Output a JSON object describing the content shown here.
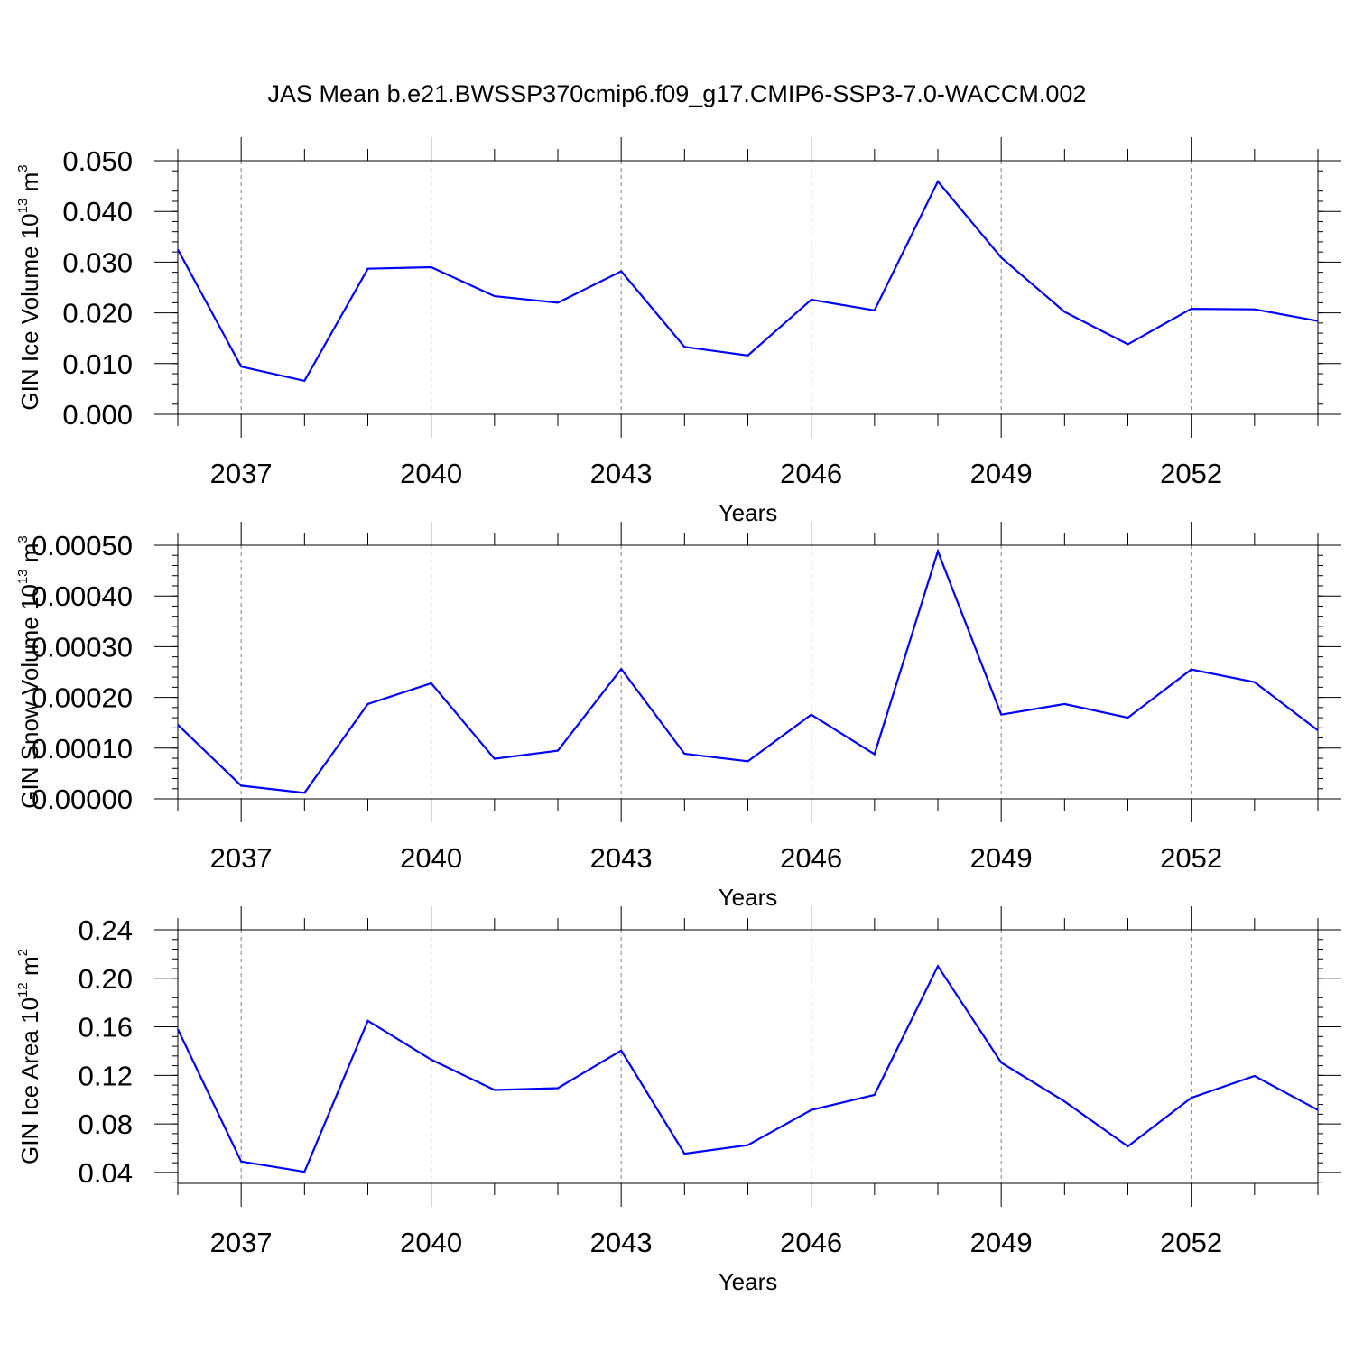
{
  "title": "JAS Mean b.e21.BWSSP370cmip6.f09_g17.CMIP6-SSP3-7.0-WACCM.002",
  "chart_data": [
    {
      "type": "line",
      "title": "JAS Mean b.e21.BWSSP370cmip6.f09_g17.CMIP6-SSP3-7.0-WACCM.002",
      "xlabel": "Years",
      "ylabel_main": "GIN Ice Volume 10",
      "ylabel_exp": "13",
      "ylabel_unit": " m",
      "ylabel_unit_exp": "3",
      "xlim": [
        2036,
        2054
      ],
      "ylim": [
        0.0,
        0.05
      ],
      "xticks": [
        2037,
        2040,
        2043,
        2046,
        2049,
        2052
      ],
      "xtick_labels": [
        "2037",
        "2040",
        "2043",
        "2046",
        "2049",
        "2052"
      ],
      "yticks": [
        0.0,
        0.01,
        0.02,
        0.03,
        0.04,
        0.05
      ],
      "ytick_labels": [
        "0.000",
        "0.010",
        "0.020",
        "0.030",
        "0.040",
        "0.050"
      ],
      "grid": "vertical dashed at major x ticks",
      "series": [
        {
          "color": "#0000ff",
          "x": [
            2036,
            2037,
            2038,
            2039,
            2040,
            2041,
            2042,
            2043,
            2044,
            2045,
            2046,
            2047,
            2048,
            2049,
            2050,
            2051,
            2052,
            2053,
            2054
          ],
          "y": [
            0.0325,
            0.0094,
            0.0066,
            0.0287,
            0.029,
            0.0233,
            0.022,
            0.0282,
            0.0133,
            0.0116,
            0.0226,
            0.0205,
            0.0459,
            0.0309,
            0.0202,
            0.0138,
            0.0208,
            0.0207,
            0.0184
          ]
        }
      ]
    },
    {
      "type": "line",
      "xlabel": "Years",
      "ylabel_main": "GIN Snow Volume 10",
      "ylabel_exp": "13",
      "ylabel_unit": " m",
      "ylabel_unit_exp": "3",
      "xlim": [
        2036,
        2054
      ],
      "ylim": [
        0.0,
        0.0005
      ],
      "xticks": [
        2037,
        2040,
        2043,
        2046,
        2049,
        2052
      ],
      "xtick_labels": [
        "2037",
        "2040",
        "2043",
        "2046",
        "2049",
        "2052"
      ],
      "yticks": [
        0.0,
        0.0001,
        0.0002,
        0.0003,
        0.0004,
        0.0005
      ],
      "ytick_labels": [
        "0.00000",
        "0.00010",
        "0.00020",
        "0.00030",
        "0.00040",
        "0.00050"
      ],
      "grid": "vertical dashed at major x ticks",
      "series": [
        {
          "color": "#0000ff",
          "x": [
            2036,
            2037,
            2038,
            2039,
            2040,
            2041,
            2042,
            2043,
            2044,
            2045,
            2046,
            2047,
            2048,
            2049,
            2050,
            2051,
            2052,
            2053,
            2054
          ],
          "y": [
            0.000146,
            2.6e-05,
            1.2e-05,
            0.000187,
            0.000228,
            7.9e-05,
            9.5e-05,
            0.000256,
            8.9e-05,
            7.4e-05,
            0.000166,
            8.8e-05,
            0.000488,
            0.000166,
            0.000187,
            0.00016,
            0.000255,
            0.00023,
            0.000135
          ]
        }
      ]
    },
    {
      "type": "line",
      "xlabel": "Years",
      "ylabel_main": "GIN Ice Area 10",
      "ylabel_exp": "12",
      "ylabel_unit": " m",
      "ylabel_unit_exp": "2",
      "xlim": [
        2036,
        2054
      ],
      "ylim": [
        0.031,
        0.24
      ],
      "xticks": [
        2037,
        2040,
        2043,
        2046,
        2049,
        2052
      ],
      "xtick_labels": [
        "2037",
        "2040",
        "2043",
        "2046",
        "2049",
        "2052"
      ],
      "yticks": [
        0.04,
        0.08,
        0.12,
        0.16,
        0.2,
        0.24
      ],
      "ytick_labels": [
        "0.04",
        "0.08",
        "0.12",
        "0.16",
        "0.20",
        "0.24"
      ],
      "grid": "vertical dashed at major x ticks",
      "series": [
        {
          "color": "#0000ff",
          "x": [
            2036,
            2037,
            2038,
            2039,
            2040,
            2041,
            2042,
            2043,
            2044,
            2045,
            2046,
            2047,
            2048,
            2049,
            2050,
            2051,
            2052,
            2053,
            2054
          ],
          "y": [
            0.158,
            0.049,
            0.0405,
            0.165,
            0.133,
            0.108,
            0.1095,
            0.1405,
            0.0555,
            0.0625,
            0.0915,
            0.104,
            0.21,
            0.1305,
            0.0985,
            0.0615,
            0.1015,
            0.1195,
            0.0915
          ]
        }
      ]
    }
  ]
}
